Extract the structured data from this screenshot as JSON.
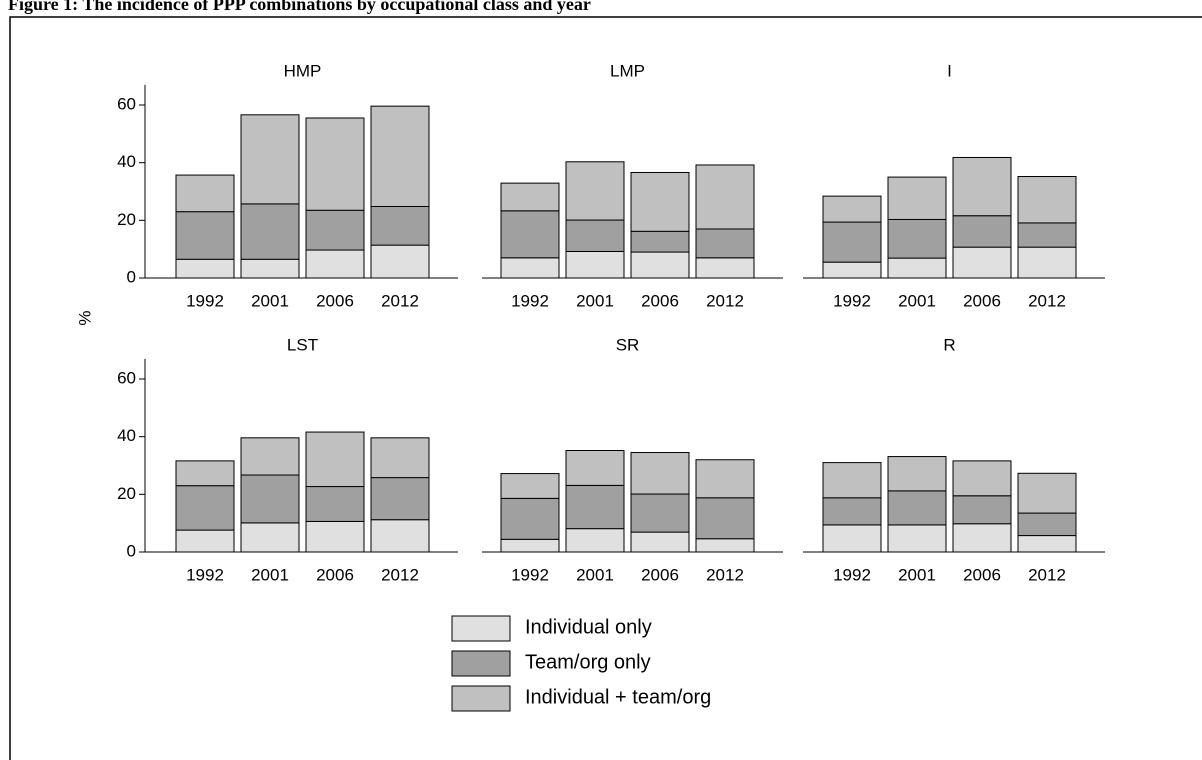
{
  "chart_data": {
    "type": "bar",
    "stacked": true,
    "title": "Figure 1: The incidence of PPP combinations by occupational class and year",
    "ylabel": "%",
    "categories": [
      "1992",
      "2001",
      "2006",
      "2012"
    ],
    "ylim": [
      0,
      67
    ],
    "yticks": [
      0,
      20,
      40,
      60
    ],
    "series": [
      {
        "name": "Individual only",
        "color": "#e0e0e0"
      },
      {
        "name": "Team/org only",
        "color": "#a0a0a0"
      },
      {
        "name": "Individual + team/org",
        "color": "#c0c0c0"
      }
    ],
    "panels": [
      {
        "title": "HMP",
        "series": [
          {
            "values": [
              6.5,
              6.5,
              9.7,
              11.4
            ]
          },
          {
            "values": [
              16.5,
              19.2,
              13.8,
              13.4
            ]
          },
          {
            "values": [
              12.7,
              30.9,
              32,
              34.8
            ]
          }
        ]
      },
      {
        "title": "LMP",
        "series": [
          {
            "values": [
              7,
              9.2,
              9,
              7
            ]
          },
          {
            "values": [
              16.3,
              10.9,
              7.2,
              10
            ]
          },
          {
            "values": [
              9.6,
              20.2,
              20.4,
              22.2
            ]
          }
        ]
      },
      {
        "title": "I",
        "series": [
          {
            "values": [
              5.5,
              6.9,
              10.7,
              10.7
            ]
          },
          {
            "values": [
              13.9,
              13.4,
              10.9,
              8.4
            ]
          },
          {
            "values": [
              9,
              14.7,
              20.2,
              16.1
            ]
          }
        ]
      },
      {
        "title": "LST",
        "series": [
          {
            "values": [
              7.6,
              10.1,
              10.6,
              11.2
            ]
          },
          {
            "values": [
              15.4,
              16.6,
              12.1,
              14.6
            ]
          },
          {
            "values": [
              8.6,
              12.9,
              18.9,
              13.8
            ]
          }
        ]
      },
      {
        "title": "SR",
        "series": [
          {
            "values": [
              4.4,
              8.1,
              6.9,
              4.6
            ]
          },
          {
            "values": [
              14.2,
              15,
              13.2,
              14.2
            ]
          },
          {
            "values": [
              8.6,
              12.1,
              14.4,
              13.2
            ]
          }
        ]
      },
      {
        "title": "R",
        "series": [
          {
            "values": [
              9.4,
              9.4,
              9.8,
              5.7
            ]
          },
          {
            "values": [
              9.4,
              11.8,
              9.7,
              7.8
            ]
          },
          {
            "values": [
              12.2,
              11.9,
              12.1,
              13.8
            ]
          }
        ]
      }
    ]
  }
}
